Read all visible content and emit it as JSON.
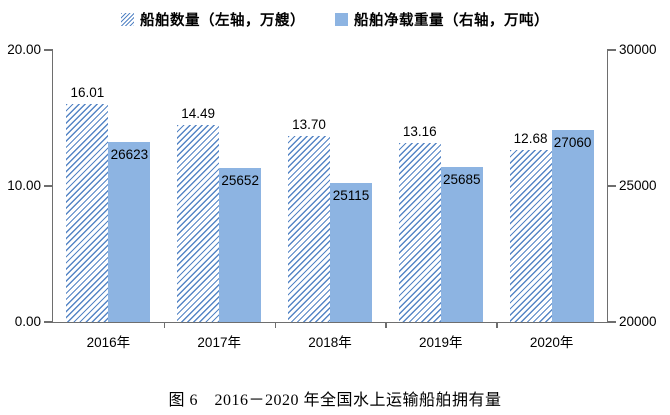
{
  "legend": {
    "items": [
      {
        "label": "船舶数量（左轴，万艘）",
        "swatch": "hatched"
      },
      {
        "label": "船舶净载重量（右轴，万吨）",
        "swatch": "solid"
      }
    ]
  },
  "caption": "图 6　2016－2020 年全国水上运输船舶拥有量",
  "colors": {
    "bar_fill": "#8DB4E2",
    "hatch_line": "#5585C5",
    "axis_line": "#6E6E6E",
    "text": "#000000"
  },
  "chart_data": {
    "type": "bar",
    "title": "图 6　2016－2020 年全国水上运输船舶拥有量",
    "categories": [
      "2016年",
      "2017年",
      "2018年",
      "2019年",
      "2020年"
    ],
    "series": [
      {
        "name": "船舶数量（左轴，万艘）",
        "axis": "left",
        "style": "hatched",
        "values": [
          16.01,
          14.49,
          13.7,
          13.16,
          12.68
        ],
        "labels": [
          "16.01",
          "14.49",
          "13.70",
          "13.16",
          "12.68"
        ]
      },
      {
        "name": "船舶净载重量（右轴，万吨）",
        "axis": "right",
        "style": "solid",
        "values": [
          26623,
          25652,
          25115,
          25685,
          27060
        ],
        "labels": [
          "26623",
          "25652",
          "25115",
          "25685",
          "27060"
        ]
      }
    ],
    "left_axis": {
      "min": 0,
      "max": 20,
      "tick_labels": [
        "20.00",
        "10.00",
        "0.00"
      ]
    },
    "right_axis": {
      "min": 20000,
      "max": 30000,
      "tick_labels": [
        "30000",
        "25000",
        "20000"
      ]
    },
    "legend_position": "top",
    "grid": false
  }
}
